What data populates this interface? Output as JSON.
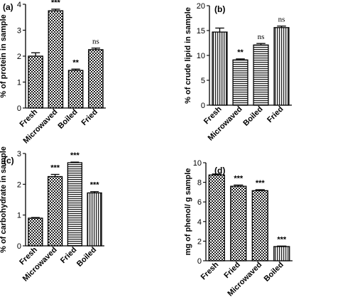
{
  "chart_data": [
    {
      "type": "bar",
      "panel_label": "(a)",
      "ylabel": "% of protein in sample",
      "ylim": [
        0,
        4
      ],
      "yticks": [
        0,
        1,
        2,
        3,
        4
      ],
      "categories": [
        "Fresh",
        "Microwaved",
        "Boiled",
        "Fried"
      ],
      "values": [
        2.0,
        3.75,
        1.45,
        2.25
      ],
      "errors": [
        0.13,
        0.06,
        0.05,
        0.06
      ],
      "annotations": [
        "",
        "***",
        "**",
        "ns"
      ],
      "patterns": [
        "checker",
        "checker",
        "checker",
        "checker"
      ]
    },
    {
      "type": "bar",
      "panel_label": "(b)",
      "ylabel": "% of crude lipid in sample",
      "ylim": [
        0,
        20
      ],
      "yticks": [
        0,
        5,
        10,
        15,
        20
      ],
      "categories": [
        "Fresh",
        "Microwaved",
        "Boiled",
        "Fried"
      ],
      "values": [
        14.7,
        9.1,
        12.1,
        15.6
      ],
      "errors": [
        0.8,
        0.2,
        0.3,
        0.3
      ],
      "annotations": [
        "",
        "**",
        "ns",
        "ns"
      ],
      "patterns": [
        "vstripe",
        "hstripe",
        "hstripe",
        "vstripe"
      ]
    },
    {
      "type": "bar",
      "panel_label": "(c)",
      "ylabel": "% of carbohydrate in sample",
      "ylim": [
        0,
        3
      ],
      "yticks": [
        0,
        1,
        2,
        3
      ],
      "categories": [
        "Fresh",
        "Microwaved",
        "Fried",
        "Boiled"
      ],
      "values": [
        0.9,
        2.25,
        2.7,
        1.72
      ],
      "errors": [
        0.02,
        0.07,
        0.02,
        0.04
      ],
      "annotations": [
        "",
        "***",
        "***",
        "***"
      ],
      "patterns": [
        "checker",
        "checker",
        "hstripe",
        "vstripe"
      ]
    },
    {
      "type": "bar",
      "panel_label": "(d)",
      "ylabel": "mg of phenol/ g sample",
      "ylim": [
        0,
        10
      ],
      "yticks": [
        0,
        2,
        4,
        6,
        8,
        10
      ],
      "categories": [
        "Fresh",
        "Fried",
        "Microwaved",
        "Boiled"
      ],
      "values": [
        8.75,
        7.6,
        7.15,
        1.45
      ],
      "errors": [
        0.1,
        0.12,
        0.1,
        0.05
      ],
      "annotations": [
        "",
        "***",
        "***",
        "***"
      ],
      "patterns": [
        "checker",
        "checker",
        "checker",
        "vstripe"
      ]
    }
  ]
}
